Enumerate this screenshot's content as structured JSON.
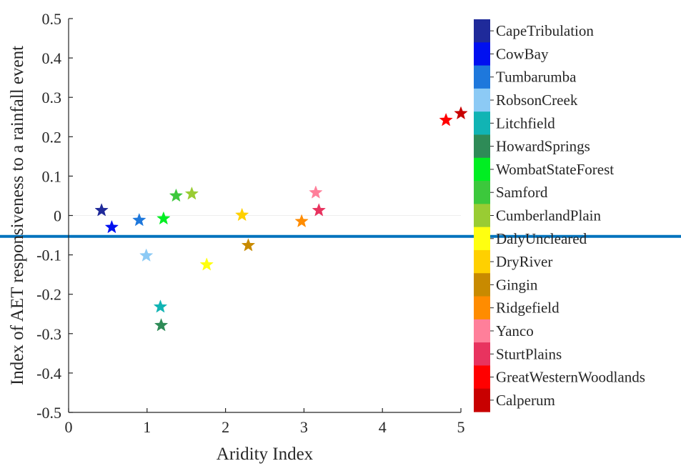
{
  "chart_data": {
    "type": "scatter",
    "xlabel": "Aridity Index",
    "ylabel": "Index of AET responsiveness to a rainfall event",
    "xlim": [
      0,
      5
    ],
    "ylim": [
      -0.5,
      0.5
    ],
    "xticks": [
      0,
      1,
      2,
      3,
      4,
      5
    ],
    "yticks": [
      0.5,
      0.4,
      0.3,
      0.2,
      0.1,
      0,
      -0.1,
      -0.2,
      -0.3,
      -0.4,
      -0.5
    ],
    "xtick_labels": [
      "0",
      "1",
      "2",
      "3",
      "4",
      "5"
    ],
    "ytick_labels": [
      "0.5",
      "0.4",
      "0.3",
      "0.2",
      "0.1",
      "0",
      "-0.1",
      "-0.2",
      "-0.3",
      "-0.4",
      "-0.5"
    ],
    "marker": "star",
    "legend_placement": "right colorbar",
    "horizontal_line": {
      "y": -0.053,
      "color": "#0072BD"
    },
    "series": [
      {
        "name": "CapeTribulation",
        "color": "#1F2A9A",
        "x": 0.42,
        "y": 0.013
      },
      {
        "name": "CowBay",
        "color": "#0010F0",
        "x": 0.55,
        "y": -0.03
      },
      {
        "name": "Tumbarumba",
        "color": "#1E78DC",
        "x": 0.9,
        "y": -0.012
      },
      {
        "name": "RobsonCreek",
        "color": "#8CCAF5",
        "x": 0.99,
        "y": -0.102
      },
      {
        "name": "Litchfield",
        "color": "#11B4B4",
        "x": 1.17,
        "y": -0.232
      },
      {
        "name": "HowardSprings",
        "color": "#2E8B57",
        "x": 1.18,
        "y": -0.279
      },
      {
        "name": "WombatStateForest",
        "color": "#00EE22",
        "x": 1.21,
        "y": -0.008
      },
      {
        "name": "Samford",
        "color": "#3CC83C",
        "x": 1.37,
        "y": 0.05
      },
      {
        "name": "CumberlandPlain",
        "color": "#99CC33",
        "x": 1.57,
        "y": 0.055
      },
      {
        "name": "DalyUncleared",
        "color": "#FFFF10",
        "x": 1.76,
        "y": -0.125
      },
      {
        "name": "DryRiver",
        "color": "#FFD000",
        "x": 2.21,
        "y": 0.001
      },
      {
        "name": "Gingin",
        "color": "#C88A00",
        "x": 2.29,
        "y": -0.076
      },
      {
        "name": "Ridgefield",
        "color": "#FF8C00",
        "x": 2.97,
        "y": -0.015
      },
      {
        "name": "Yanco",
        "color": "#FF7F9A",
        "x": 3.15,
        "y": 0.058
      },
      {
        "name": "SturtPlains",
        "color": "#E8335F",
        "x": 3.19,
        "y": 0.013
      },
      {
        "name": "GreatWesternWoodlands",
        "color": "#FF0000",
        "x": 4.81,
        "y": 0.242
      },
      {
        "name": "Calperum",
        "color": "#C80000",
        "x": 5.0,
        "y": 0.259
      }
    ]
  }
}
